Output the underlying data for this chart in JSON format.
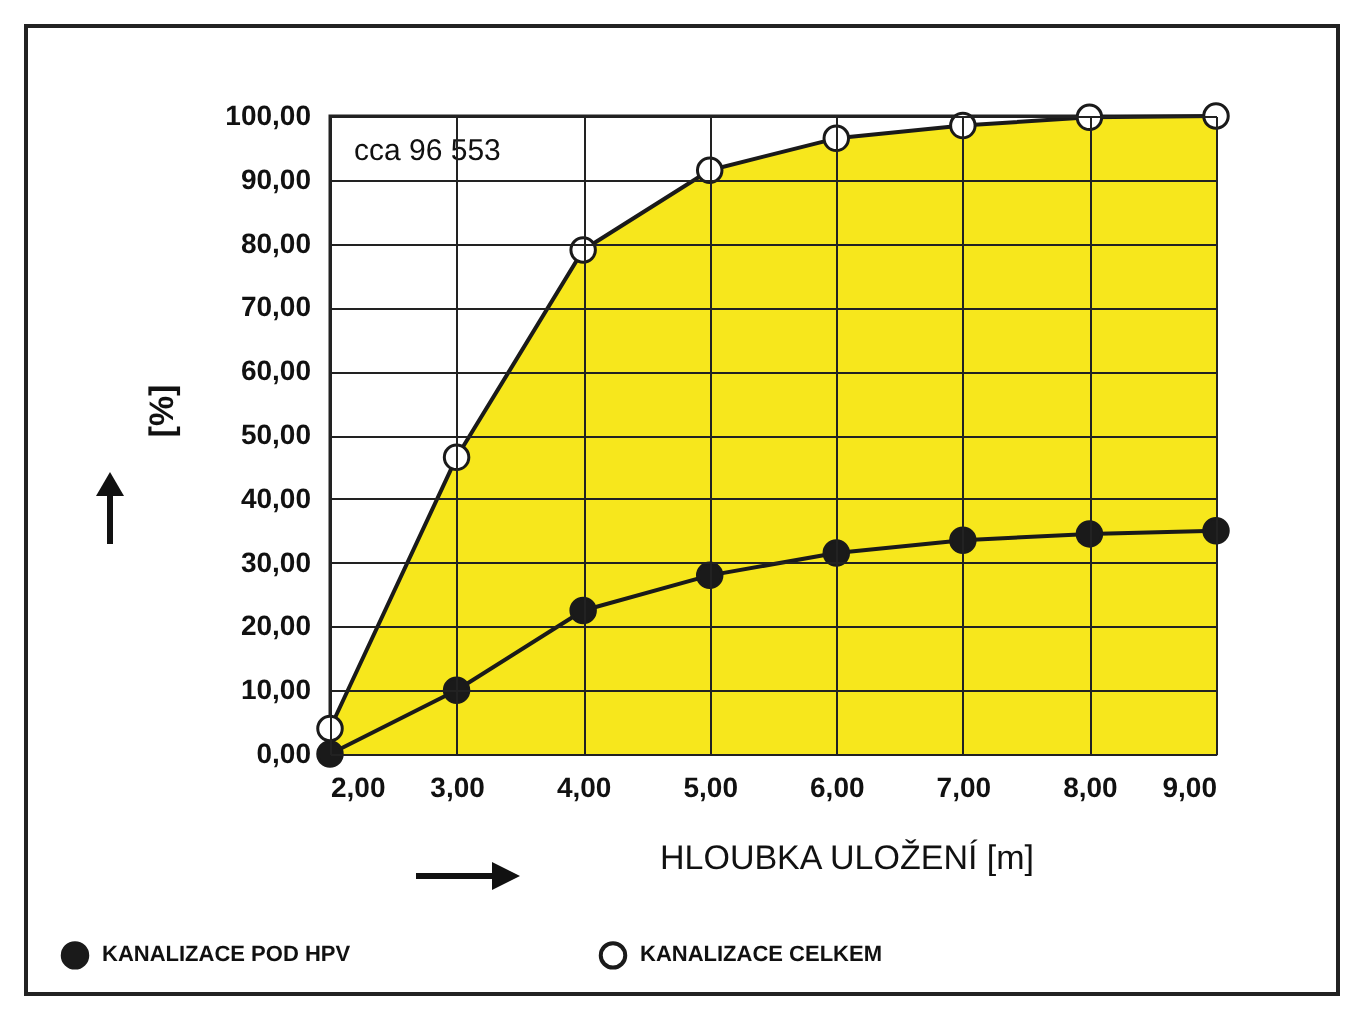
{
  "chart_data": {
    "type": "line",
    "xlabel": "HLOUBKA ULOŽENÍ [m]",
    "ylabel": "[%]",
    "x": [
      2,
      3,
      4,
      5,
      6,
      7,
      8,
      9
    ],
    "series": [
      {
        "name": "KANALIZACE POD HPV",
        "color": "#1a1a1a",
        "values": [
          0,
          10,
          22.5,
          28,
          31.5,
          33.5,
          34.5,
          35
        ]
      },
      {
        "name": "KANALIZACE CELKEM",
        "type": "area",
        "color": "#f7e71c",
        "values": [
          4,
          46.5,
          79,
          91.5,
          96.5,
          98.5,
          99.8,
          100
        ]
      }
    ],
    "xlim": [
      2,
      9
    ],
    "xticks": [
      {
        "value": 2,
        "label": "2,00"
      },
      {
        "value": 3,
        "label": "3,00"
      },
      {
        "value": 4,
        "label": "4,00"
      },
      {
        "value": 5,
        "label": "5,00"
      },
      {
        "value": 6,
        "label": "6,00"
      },
      {
        "value": 7,
        "label": "7,00"
      },
      {
        "value": 8,
        "label": "8,00"
      },
      {
        "value": 9,
        "label": "9,00"
      }
    ],
    "ylim": [
      0,
      100
    ],
    "yticks": [
      {
        "value": 0,
        "label": "0,00"
      },
      {
        "value": 10,
        "label": "10,00"
      },
      {
        "value": 20,
        "label": "20,00"
      },
      {
        "value": 30,
        "label": "30,00"
      },
      {
        "value": 40,
        "label": "40,00"
      },
      {
        "value": 50,
        "label": "50,00"
      },
      {
        "value": 60,
        "label": "60,00"
      },
      {
        "value": 70,
        "label": "70,00"
      },
      {
        "value": 80,
        "label": "80,00"
      },
      {
        "value": 90,
        "label": "90,00"
      },
      {
        "value": 100,
        "label": "100,00"
      }
    ],
    "annotations": [
      "cca 96 553"
    ],
    "grid": true,
    "legend": "bottom",
    "marker": "circle",
    "line_style": "solid"
  }
}
